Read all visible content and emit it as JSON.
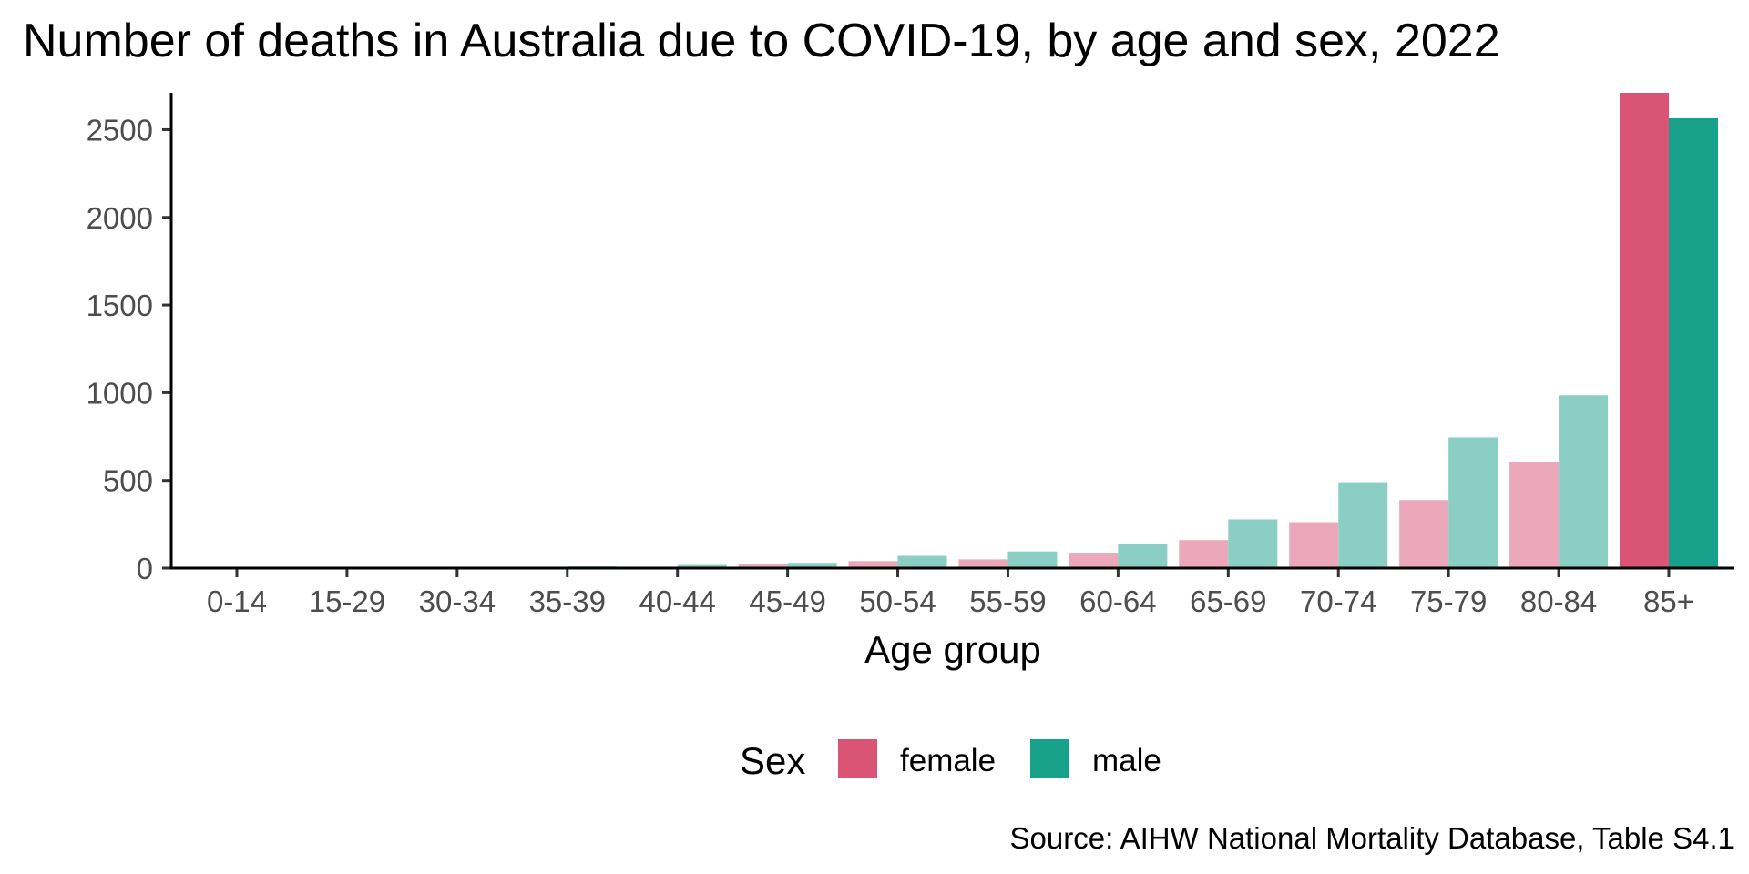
{
  "chart_data": {
    "type": "bar",
    "title": "Number of deaths in Australia due to COVID-19, by age and sex, 2022",
    "xlabel": "Age group",
    "ylabel": "",
    "caption": "Source: AIHW National Mortality Database, Table S4.1",
    "categories": [
      "0-14",
      "15-29",
      "30-34",
      "35-39",
      "40-44",
      "45-49",
      "50-54",
      "55-59",
      "60-64",
      "65-69",
      "70-74",
      "75-79",
      "80-84",
      "85+"
    ],
    "series": [
      {
        "name": "female",
        "values": [
          2,
          3,
          3,
          5,
          8,
          25,
          40,
          50,
          88,
          160,
          262,
          388,
          605,
          2710
        ],
        "color": "#D95475",
        "light_color": "#EBA8BA"
      },
      {
        "name": "male",
        "values": [
          3,
          5,
          7,
          10,
          18,
          30,
          70,
          95,
          140,
          278,
          490,
          745,
          985,
          2565
        ],
        "color": "#17A08A",
        "light_color": "#8BCFC4"
      }
    ],
    "highlight_category": "85+",
    "ylim": [
      0,
      2710
    ],
    "yticks": [
      0,
      500,
      1000,
      1500,
      2000,
      2500
    ],
    "legend": {
      "title": "Sex",
      "position": "bottom",
      "entries": [
        "female",
        "male"
      ]
    },
    "grid": false
  }
}
